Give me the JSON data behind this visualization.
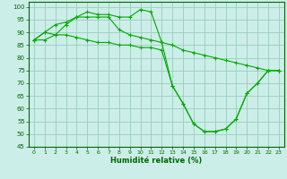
{
  "title": "",
  "xlabel": "Humidité relative (%)",
  "ylabel": "",
  "background_color": "#cceee8",
  "grid_color": "#99ccbb",
  "line_color": "#00aa00",
  "marker_color": "#00aa00",
  "xlim": [
    -0.5,
    23.5
  ],
  "ylim": [
    45,
    102
  ],
  "yticks": [
    45,
    50,
    55,
    60,
    65,
    70,
    75,
    80,
    85,
    90,
    95,
    100
  ],
  "xticks": [
    0,
    1,
    2,
    3,
    4,
    5,
    6,
    7,
    8,
    9,
    10,
    11,
    12,
    13,
    14,
    15,
    16,
    17,
    18,
    19,
    20,
    21,
    22,
    23
  ],
  "series": [
    {
      "x": [
        0,
        1,
        2,
        3,
        4,
        5,
        6,
        7,
        8,
        9,
        10,
        11,
        12,
        13,
        14,
        15,
        16,
        17,
        18,
        19,
        20,
        21,
        22,
        23
      ],
      "y": [
        87,
        90,
        89,
        93,
        96,
        98,
        97,
        97,
        96,
        96,
        99,
        98,
        86,
        69,
        62,
        54,
        51,
        51,
        52,
        56,
        66,
        70,
        75,
        75
      ]
    },
    {
      "x": [
        0,
        1,
        2,
        3,
        4,
        5,
        6,
        7,
        8,
        9,
        10,
        11,
        12,
        13,
        14,
        15,
        16,
        17,
        18,
        19,
        20,
        21,
        22,
        23
      ],
      "y": [
        87,
        90,
        93,
        94,
        96,
        96,
        96,
        96,
        91,
        89,
        88,
        87,
        86,
        85,
        83,
        82,
        81,
        80,
        79,
        78,
        77,
        76,
        75,
        75
      ]
    },
    {
      "x": [
        0,
        1,
        2,
        3,
        4,
        5,
        6,
        7,
        8,
        9,
        10,
        11,
        12,
        13,
        14,
        15,
        16,
        17,
        18,
        19,
        20,
        21,
        22,
        23
      ],
      "y": [
        87,
        87,
        89,
        89,
        88,
        87,
        86,
        86,
        85,
        85,
        84,
        84,
        83,
        69,
        62,
        54,
        51,
        51,
        52,
        56,
        66,
        70,
        75,
        75
      ]
    }
  ]
}
